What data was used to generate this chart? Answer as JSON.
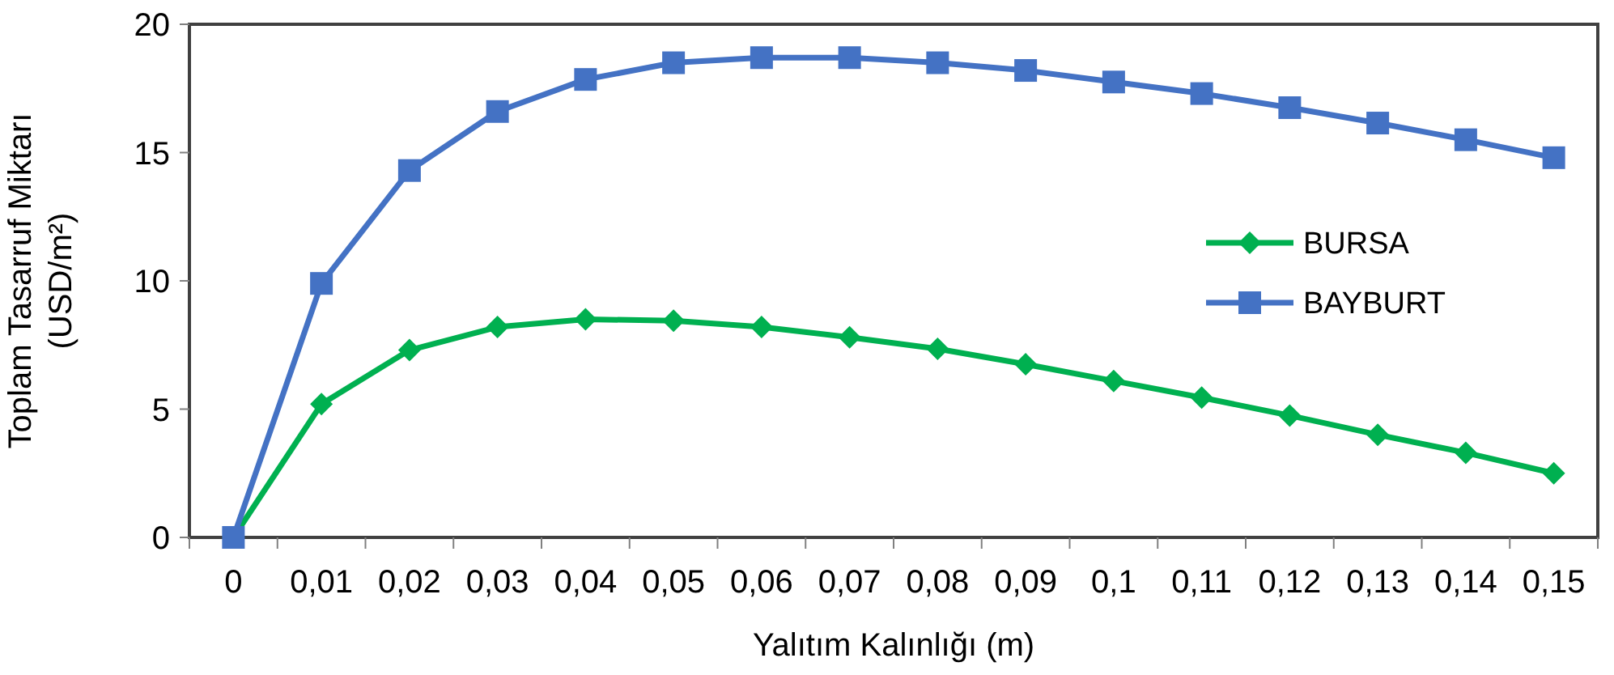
{
  "chart_data": {
    "type": "line",
    "xlabel": "Yalıtım Kalınlığı (m)",
    "ylabel": "Toplam Tasarruf Miktarı\n(USD/m²)",
    "categories": [
      "0",
      "0,01",
      "0,02",
      "0,03",
      "0,04",
      "0,05",
      "0,06",
      "0,07",
      "0,08",
      "0,09",
      "0,1",
      "0,11",
      "0,12",
      "0,13",
      "0,14",
      "0,15"
    ],
    "ylim": [
      0,
      20
    ],
    "yticks": [
      0,
      5,
      10,
      15,
      20
    ],
    "grid": false,
    "legend": "right",
    "line_style": "solid",
    "series": [
      {
        "name": "BURSA",
        "color": "#00b050",
        "marker": "diamond",
        "values": [
          0,
          5.2,
          7.3,
          8.2,
          8.5,
          8.45,
          8.2,
          7.8,
          7.35,
          6.75,
          6.1,
          5.45,
          4.75,
          4.0,
          3.3,
          2.5
        ]
      },
      {
        "name": "BAYBURT",
        "color": "#4472c4",
        "marker": "square",
        "values": [
          0,
          9.9,
          14.3,
          16.6,
          17.85,
          18.5,
          18.7,
          18.7,
          18.5,
          18.2,
          17.75,
          17.3,
          16.75,
          16.15,
          15.5,
          14.8
        ]
      }
    ]
  }
}
